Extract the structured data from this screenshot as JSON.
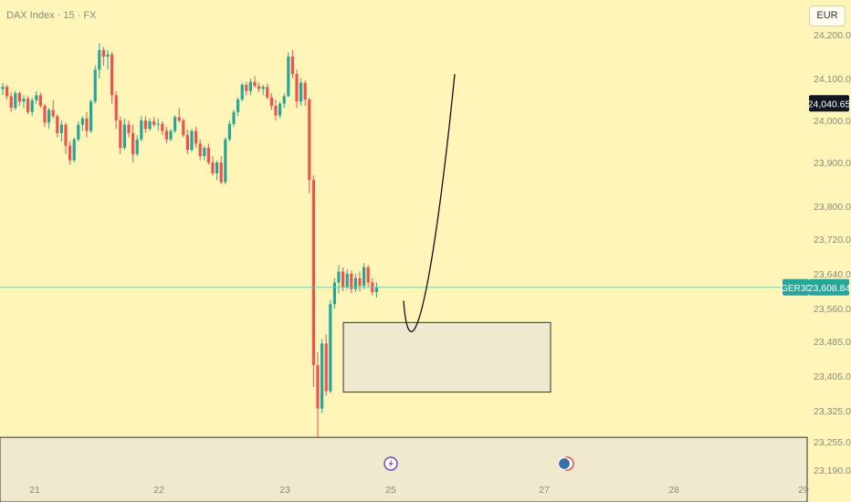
{
  "header": {
    "symbol_title": "DAX Index · 15 · FX"
  },
  "currency_button": "EUR",
  "colors": {
    "background": "#fff5b8",
    "up": "#26a69a",
    "down": "#ef5350",
    "box_fill": "#efe9cd",
    "last_price_tag": "#131722",
    "symbol_tag": "#26a69a"
  },
  "price_tags": {
    "last_price": "24,040.65",
    "symbol": "GER30",
    "symbol_price": "23,608.84"
  },
  "chart_data": {
    "type": "candlestick",
    "title": "DAX Index · 15 · FX",
    "y_ticks": [
      "24,200.00",
      "24,100.00",
      "24,000.00",
      "23,900.00",
      "23,800.00",
      "23,720.00",
      "23,640.00",
      "23,560.00",
      "23,485.00",
      "23,405.00",
      "23,325.00",
      "23,255.00",
      "23,190.00"
    ],
    "x_ticks": [
      "21",
      "22",
      "23",
      "25",
      "27",
      "28",
      "29"
    ],
    "ylim": [
      23190,
      24220
    ],
    "candles": [
      [
        24075,
        24090,
        24060,
        24080
      ],
      [
        24080,
        24085,
        24050,
        24058
      ],
      [
        24058,
        24068,
        24020,
        24030
      ],
      [
        24030,
        24072,
        24025,
        24065
      ],
      [
        24065,
        24070,
        24035,
        24045
      ],
      [
        24045,
        24060,
        24030,
        24052
      ],
      [
        24052,
        24058,
        24015,
        24020
      ],
      [
        24020,
        24055,
        24010,
        24048
      ],
      [
        24048,
        24070,
        24040,
        24060
      ],
      [
        24060,
        24066,
        24030,
        24035
      ],
      [
        24035,
        24040,
        23985,
        23995
      ],
      [
        23995,
        24030,
        23980,
        24025
      ],
      [
        24025,
        24048,
        24005,
        24010
      ],
      [
        24010,
        24015,
        23960,
        23970
      ],
      [
        23970,
        24000,
        23950,
        23990
      ],
      [
        23990,
        23995,
        23920,
        23940
      ],
      [
        23940,
        23950,
        23895,
        23905
      ],
      [
        23905,
        23960,
        23900,
        23955
      ],
      [
        23955,
        23998,
        23950,
        23990
      ],
      [
        23990,
        24010,
        23975,
        24005
      ],
      [
        24005,
        24020,
        23960,
        23975
      ],
      [
        23975,
        24050,
        23970,
        24045
      ],
      [
        24045,
        24130,
        24040,
        24120
      ],
      [
        24120,
        24180,
        24100,
        24165
      ],
      [
        24165,
        24172,
        24130,
        24150
      ],
      [
        24150,
        24165,
        24120,
        24155
      ],
      [
        24155,
        24160,
        24040,
        24060
      ],
      [
        24060,
        24070,
        23980,
        24000
      ],
      [
        24000,
        24010,
        23920,
        23935
      ],
      [
        23935,
        24005,
        23930,
        23990
      ],
      [
        23990,
        24000,
        23960,
        23970
      ],
      [
        23970,
        23990,
        23900,
        23920
      ],
      [
        23920,
        23965,
        23915,
        23955
      ],
      [
        23955,
        24010,
        23950,
        24000
      ],
      [
        24000,
        24010,
        23970,
        23980
      ],
      [
        23980,
        24005,
        23975,
        23998
      ],
      [
        23998,
        24008,
        23985,
        23990
      ],
      [
        23990,
        24005,
        23975,
        23992
      ],
      [
        23992,
        23998,
        23965,
        23975
      ],
      [
        23975,
        23985,
        23945,
        23955
      ],
      [
        23955,
        23980,
        23950,
        23975
      ],
      [
        23975,
        24012,
        23970,
        24008
      ],
      [
        24008,
        24030,
        23995,
        24000
      ],
      [
        24000,
        24005,
        23960,
        23965
      ],
      [
        23965,
        23978,
        23920,
        23930
      ],
      [
        23930,
        23980,
        23925,
        23975
      ],
      [
        23975,
        23985,
        23935,
        23945
      ],
      [
        23945,
        23955,
        23905,
        23915
      ],
      [
        23915,
        23940,
        23905,
        23935
      ],
      [
        23935,
        23945,
        23895,
        23900
      ],
      [
        23900,
        23915,
        23870,
        23875
      ],
      [
        23875,
        23905,
        23860,
        23900
      ],
      [
        23900,
        23915,
        23850,
        23855
      ],
      [
        23855,
        23960,
        23850,
        23955
      ],
      [
        23955,
        24000,
        23950,
        23992
      ],
      [
        23992,
        24025,
        23985,
        24020
      ],
      [
        24020,
        24055,
        24010,
        24050
      ],
      [
        24050,
        24090,
        24045,
        24085
      ],
      [
        24085,
        24092,
        24060,
        24070
      ],
      [
        24070,
        24100,
        24060,
        24092
      ],
      [
        24092,
        24105,
        24078,
        24082
      ],
      [
        24082,
        24090,
        24068,
        24075
      ],
      [
        24075,
        24085,
        24060,
        24080
      ],
      [
        24080,
        24088,
        24050,
        24055
      ],
      [
        24055,
        24065,
        24025,
        24035
      ],
      [
        24035,
        24050,
        24000,
        24012
      ],
      [
        24012,
        24045,
        24005,
        24040
      ],
      [
        24040,
        24065,
        24030,
        24058
      ],
      [
        24058,
        24160,
        24055,
        24150
      ],
      [
        24150,
        24165,
        24100,
        24110
      ],
      [
        24110,
        24120,
        24030,
        24045
      ],
      [
        24045,
        24100,
        24035,
        24090
      ],
      [
        24090,
        24095,
        24035,
        24050
      ],
      [
        24050,
        24055,
        23830,
        23860
      ],
      [
        23860,
        23870,
        23380,
        23430
      ],
      [
        23430,
        23460,
        23255,
        23330
      ],
      [
        23330,
        23490,
        23320,
        23480
      ],
      [
        23480,
        23500,
        23360,
        23370
      ],
      [
        23370,
        23580,
        23365,
        23570
      ],
      [
        23570,
        23630,
        23560,
        23620
      ],
      [
        23620,
        23660,
        23595,
        23645
      ],
      [
        23645,
        23655,
        23600,
        23610
      ],
      [
        23610,
        23650,
        23605,
        23640
      ],
      [
        23640,
        23648,
        23595,
        23605
      ],
      [
        23605,
        23640,
        23598,
        23630
      ],
      [
        23630,
        23645,
        23600,
        23612
      ],
      [
        23612,
        23665,
        23605,
        23655
      ],
      [
        23655,
        23660,
        23610,
        23620
      ],
      [
        23620,
        23630,
        23590,
        23598
      ],
      [
        23598,
        23620,
        23585,
        23608
      ]
    ],
    "zones": [
      {
        "type": "rectangle",
        "price_top": 23528,
        "price_bottom": 23368
      },
      {
        "type": "rectangle",
        "price_top": 23265,
        "price_bottom": 23180
      }
    ],
    "projection": {
      "type": "curve",
      "from_price": 23578,
      "low_price": 23510,
      "to_price": 24110
    },
    "horizontal_line": {
      "price": 23608.84
    }
  }
}
